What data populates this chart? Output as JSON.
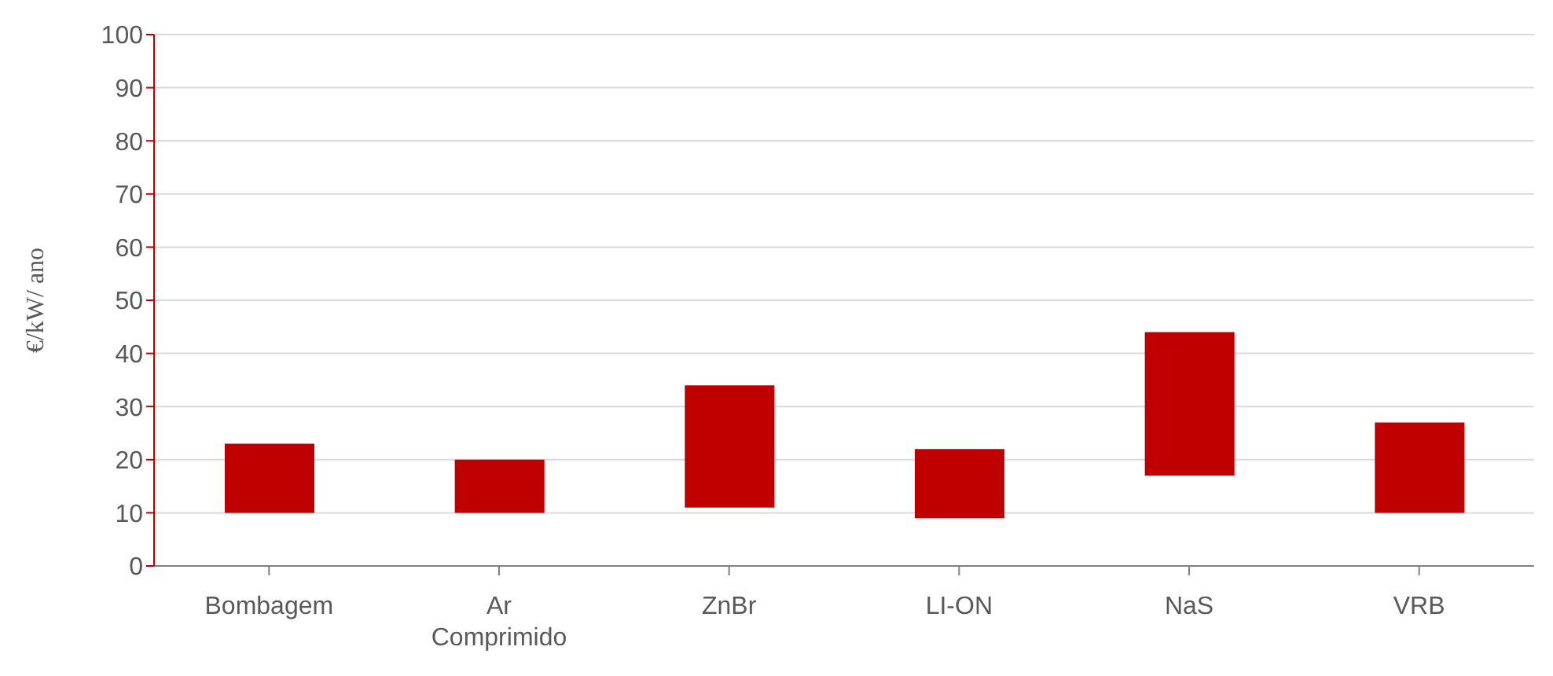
{
  "chart_data": {
    "type": "bar",
    "ylabel": "€/kW/ ano",
    "categories": [
      "Bombagem",
      "Ar Comprimido",
      "ZnBr",
      "LI-ON",
      "NaS",
      "VRB"
    ],
    "base": [
      10,
      10,
      11,
      9,
      17,
      10
    ],
    "values": [
      13,
      10,
      23,
      13,
      27,
      17
    ],
    "color": "#c00000",
    "ylim": [
      0,
      100
    ],
    "yticks": [
      0,
      10,
      20,
      30,
      40,
      50,
      60,
      70,
      80,
      90,
      100
    ],
    "grid": "y",
    "legend": false
  }
}
